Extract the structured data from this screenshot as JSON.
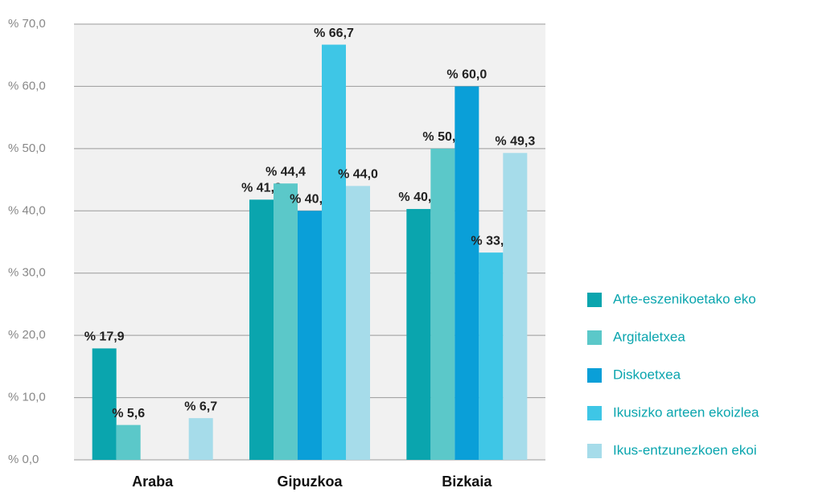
{
  "chart_data": {
    "type": "bar",
    "categories": [
      "Araba",
      "Gipuzkoa",
      "Bizkaia"
    ],
    "series": [
      {
        "name": "Arte-eszenikoetako eko",
        "color": "#0aa5ae",
        "values": [
          17.9,
          41.8,
          40.3
        ],
        "value_labels": [
          "% 17,9",
          "% 41,8",
          "% 40,3"
        ]
      },
      {
        "name": "Argitaletxea",
        "color": "#5bc8c9",
        "values": [
          5.6,
          44.4,
          50.0
        ],
        "value_labels": [
          "% 5,6",
          "% 44,4",
          "% 50,0"
        ]
      },
      {
        "name": "Diskoetxea",
        "color": "#0a9fd8",
        "values": [
          null,
          40.0,
          60.0
        ],
        "value_labels": [
          null,
          "% 40,0",
          "% 60,0"
        ]
      },
      {
        "name": "Ikusizko arteen ekoizlea",
        "color": "#3ec6e6",
        "values": [
          null,
          66.7,
          33.3
        ],
        "value_labels": [
          null,
          "% 66,7",
          "% 33,3"
        ]
      },
      {
        "name": "Ikus-entzunezkoen ekoi",
        "color": "#a6dcea",
        "values": [
          6.7,
          44.0,
          49.3
        ],
        "value_labels": [
          "% 6,7",
          "% 44,0",
          "% 49,3"
        ]
      }
    ],
    "ylim": [
      0,
      70
    ],
    "yticks": [
      {
        "value": 0,
        "label": "% 0,0"
      },
      {
        "value": 10,
        "label": "% 10,0"
      },
      {
        "value": 20,
        "label": "% 20,0"
      },
      {
        "value": 30,
        "label": "% 30,0"
      },
      {
        "value": 40,
        "label": "% 40,0"
      },
      {
        "value": 50,
        "label": "% 50,0"
      },
      {
        "value": 60,
        "label": "% 60,0"
      },
      {
        "value": 70,
        "label": "% 70,0"
      }
    ],
    "grid": true,
    "legend": "right"
  }
}
